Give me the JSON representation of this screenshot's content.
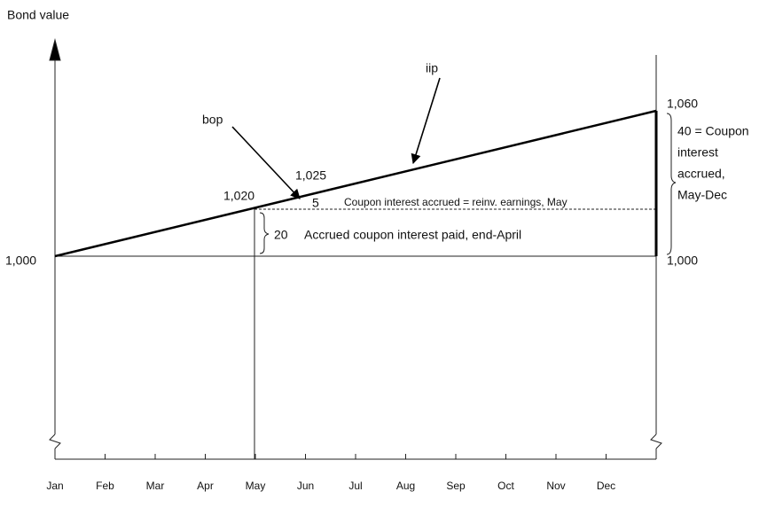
{
  "y_axis_label": "Bond value",
  "months": [
    "Jan",
    "Feb",
    "Mar",
    "Apr",
    "May",
    "Jun",
    "Jul",
    "Aug",
    "Sep",
    "Oct",
    "Nov",
    "Dec"
  ],
  "labels": {
    "start_value": "1,000",
    "end_base_value": "1,000",
    "end_value": "1,060",
    "april_value": "1,020",
    "may_value": "1,025",
    "bop": "bop",
    "iip": "iip",
    "may_accrued": "5",
    "may_accrued_note": "Coupon interest accrued = reinv. earnings, May",
    "april_paid": "20",
    "april_paid_note": "Accrued coupon interest paid, end-April",
    "may_dec_note": [
      "40 = Coupon",
      "interest",
      "accrued,",
      "May-Dec"
    ]
  }
}
